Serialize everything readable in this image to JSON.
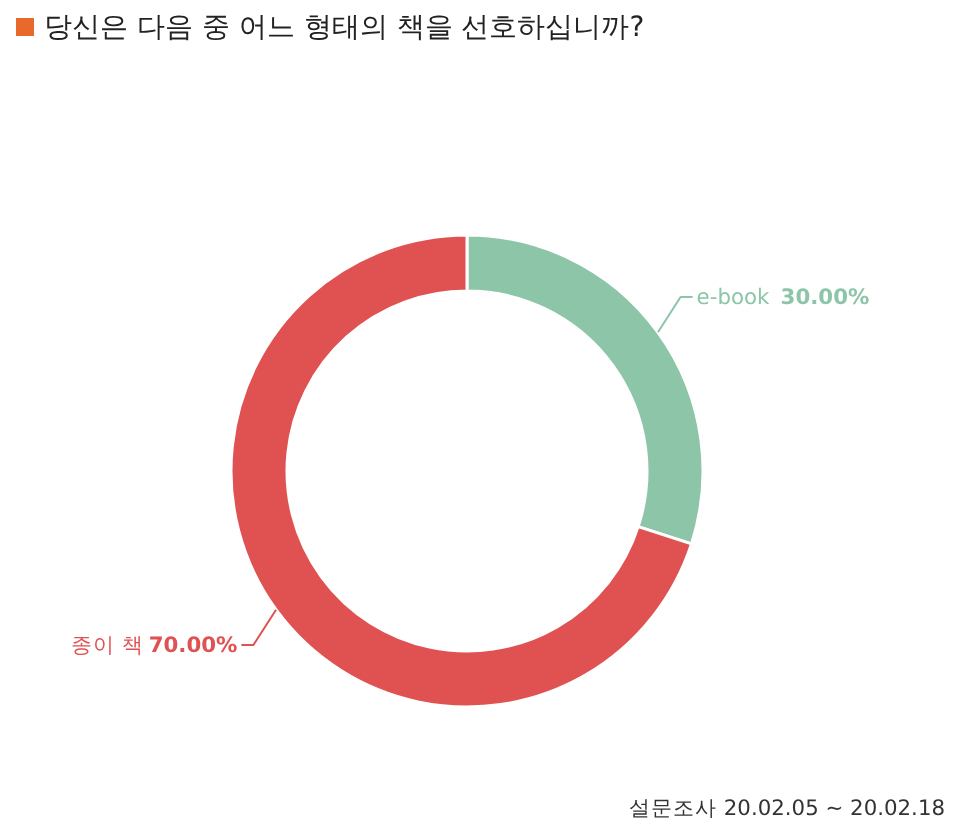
{
  "chart_data": {
    "type": "donut",
    "title": "당신은 다음 중 어느 형태의 책을 선호하십니까?",
    "categories": [
      "e-book",
      "종이 책"
    ],
    "values": [
      30,
      70
    ],
    "colors": [
      "#8cc5a8",
      "#e05252"
    ],
    "value_labels": [
      "30.00%",
      "70.00%"
    ],
    "annotations": [
      "설문조사 20.02.05 ~ 20.02.18"
    ]
  }
}
